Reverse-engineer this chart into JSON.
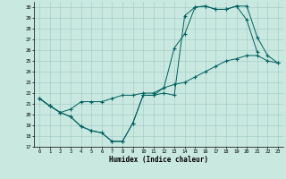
{
  "xlabel": "Humidex (Indice chaleur)",
  "bg_color": "#c8e8e0",
  "grid_color": "#a0c8c0",
  "line_color": "#006060",
  "xlim": [
    -0.5,
    23.5
  ],
  "ylim": [
    17,
    30.5
  ],
  "yticks": [
    17,
    18,
    19,
    20,
    21,
    22,
    23,
    24,
    25,
    26,
    27,
    28,
    29,
    30
  ],
  "xticks": [
    0,
    1,
    2,
    3,
    4,
    5,
    6,
    7,
    8,
    9,
    10,
    11,
    12,
    13,
    14,
    15,
    16,
    17,
    18,
    19,
    20,
    21,
    22,
    23
  ],
  "line1_x": [
    0,
    1,
    2,
    3,
    4,
    5,
    6,
    7,
    8,
    9,
    10,
    11,
    12,
    13,
    14,
    15,
    16,
    17,
    18,
    19,
    20,
    21,
    22,
    23
  ],
  "line1_y": [
    21.5,
    20.8,
    20.2,
    19.8,
    18.9,
    18.5,
    18.3,
    17.5,
    17.5,
    19.2,
    21.8,
    21.8,
    22.0,
    21.8,
    29.2,
    30.0,
    30.1,
    29.8,
    29.8,
    30.1,
    30.1,
    27.2,
    25.5,
    24.8
  ],
  "line2_x": [
    0,
    1,
    2,
    3,
    4,
    5,
    6,
    7,
    8,
    9,
    10,
    11,
    12,
    13,
    14,
    15,
    16,
    17,
    18,
    19,
    20,
    21
  ],
  "line2_y": [
    21.5,
    20.8,
    20.2,
    19.8,
    18.9,
    18.5,
    18.3,
    17.5,
    17.5,
    19.2,
    21.8,
    21.8,
    22.5,
    26.2,
    27.5,
    30.0,
    30.1,
    29.8,
    29.8,
    30.1,
    28.8,
    25.8
  ],
  "line3_x": [
    0,
    1,
    2,
    3,
    4,
    5,
    6,
    7,
    8,
    9,
    10,
    11,
    12,
    13,
    14,
    15,
    16,
    17,
    18,
    19,
    20,
    21,
    22,
    23
  ],
  "line3_y": [
    21.5,
    20.8,
    20.2,
    20.5,
    21.2,
    21.2,
    21.2,
    21.5,
    21.8,
    21.8,
    22.0,
    22.0,
    22.5,
    22.8,
    23.0,
    23.5,
    24.0,
    24.5,
    25.0,
    25.2,
    25.5,
    25.5,
    25.0,
    24.8
  ]
}
